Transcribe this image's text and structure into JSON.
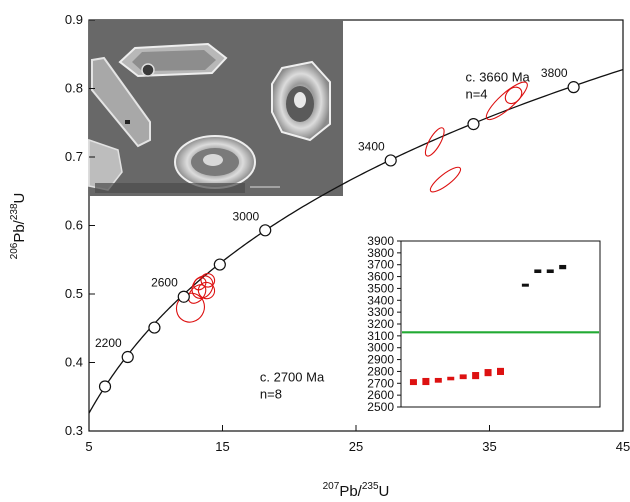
{
  "chart_data": [
    {
      "type": "scatter",
      "title": "",
      "xlabel": {
        "pre": "207",
        "base1": "Pb/",
        "mid": "235",
        "base2": "U"
      },
      "ylabel": {
        "pre": "206",
        "base1": "Pb/",
        "mid": "238",
        "base2": "U"
      },
      "xlim": [
        5,
        45
      ],
      "ylim": [
        0.3,
        0.9
      ],
      "x_ticks": [
        5,
        15,
        25,
        35,
        45
      ],
      "x_tick_labels": [
        "5",
        "15",
        "25",
        "35",
        "45"
      ],
      "y_ticks": [
        0.3,
        0.4,
        0.5,
        0.6,
        0.7,
        0.8,
        0.9
      ],
      "y_tick_labels": [
        "0.3",
        "0.4",
        "0.5",
        "0.6",
        "0.7",
        "0.8",
        "0.9"
      ],
      "concordia": {
        "color": "#111111",
        "markers": [
          {
            "x": 6.2,
            "y": 0.365
          },
          {
            "x": 7.9,
            "y": 0.408
          },
          {
            "x": 9.9,
            "y": 0.451
          },
          {
            "x": 12.1,
            "y": 0.496
          },
          {
            "x": 14.8,
            "y": 0.543
          },
          {
            "x": 18.2,
            "y": 0.593
          },
          {
            "x": 27.6,
            "y": 0.695
          },
          {
            "x": 33.8,
            "y": 0.748
          },
          {
            "x": 41.3,
            "y": 0.802
          }
        ],
        "age_labels": [
          {
            "text": "2200",
            "x": 7.9,
            "y": 0.408
          },
          {
            "text": "2600",
            "x": 12.1,
            "y": 0.496
          },
          {
            "text": "3000",
            "x": 18.2,
            "y": 0.593
          },
          {
            "text": "3400",
            "x": 27.6,
            "y": 0.695
          },
          {
            "text": "3800",
            "x": 41.3,
            "y": 0.802
          }
        ]
      },
      "error_ellipses": {
        "color": "#dd1111",
        "items": [
          {
            "x": 12.6,
            "y": 0.48,
            "rx": 1.1,
            "ry": 0.02,
            "angle": 58
          },
          {
            "x": 13.1,
            "y": 0.5,
            "rx": 0.8,
            "ry": 0.01,
            "angle": 50
          },
          {
            "x": 13.5,
            "y": 0.51,
            "rx": 0.9,
            "ry": 0.014,
            "angle": 55
          },
          {
            "x": 13.8,
            "y": 0.505,
            "rx": 0.6,
            "ry": 0.012,
            "angle": 40
          },
          {
            "x": 13.3,
            "y": 0.515,
            "rx": 0.5,
            "ry": 0.008,
            "angle": 45
          },
          {
            "x": 13.9,
            "y": 0.52,
            "rx": 0.5,
            "ry": 0.01,
            "angle": 55
          },
          {
            "x": 30.9,
            "y": 0.722,
            "rx": 1.2,
            "ry": 0.008,
            "angle": 60
          },
          {
            "x": 31.7,
            "y": 0.667,
            "rx": 1.4,
            "ry": 0.008,
            "angle": 38
          },
          {
            "x": 36.3,
            "y": 0.782,
            "rx": 2.0,
            "ry": 0.011,
            "angle": 42
          },
          {
            "x": 36.8,
            "y": 0.79,
            "rx": 0.7,
            "ry": 0.01,
            "angle": 45
          }
        ]
      },
      "annotations": [
        {
          "lines": [
            "c. 3660 Ma",
            "n=4"
          ],
          "x": 33.2,
          "y": 0.81
        },
        {
          "lines": [
            "c. 2700 Ma",
            "n=8"
          ],
          "x": 17.8,
          "y": 0.372
        }
      ],
      "inset_image": {
        "description_icon": "zircon-photomicrograph"
      }
    },
    {
      "type": "scatter",
      "title": "",
      "ylim": [
        2500,
        3900
      ],
      "y_ticks": [
        2500,
        2600,
        2700,
        2800,
        2900,
        3000,
        3100,
        3200,
        3300,
        3400,
        3500,
        3600,
        3700,
        3800,
        3900
      ],
      "y_tick_labels": [
        "2500",
        "2600",
        "2700",
        "2800",
        "2900",
        "3000",
        "3100",
        "3200",
        "3300",
        "3400",
        "3500",
        "3600",
        "3700",
        "3800",
        "3900"
      ],
      "xlim": [
        0,
        16
      ],
      "reference_line": {
        "value": 3130,
        "color": "#22aa33"
      },
      "series": [
        {
          "color": "#dd1111",
          "points": [
            {
              "x": 1,
              "y": 2710,
              "err": 25
            },
            {
              "x": 2,
              "y": 2715,
              "err": 30
            },
            {
              "x": 3,
              "y": 2725,
              "err": 20
            },
            {
              "x": 4,
              "y": 2740,
              "err": 15
            },
            {
              "x": 5,
              "y": 2755,
              "err": 20
            },
            {
              "x": 6,
              "y": 2765,
              "err": 30
            },
            {
              "x": 7,
              "y": 2790,
              "err": 30
            },
            {
              "x": 8,
              "y": 2800,
              "err": 30
            }
          ]
        },
        {
          "color": "#111111",
          "points": [
            {
              "x": 10,
              "y": 3530,
              "err": 10
            },
            {
              "x": 11,
              "y": 3645,
              "err": 15
            },
            {
              "x": 12,
              "y": 3645,
              "err": 15
            },
            {
              "x": 13,
              "y": 3680,
              "err": 18
            }
          ]
        }
      ]
    }
  ]
}
